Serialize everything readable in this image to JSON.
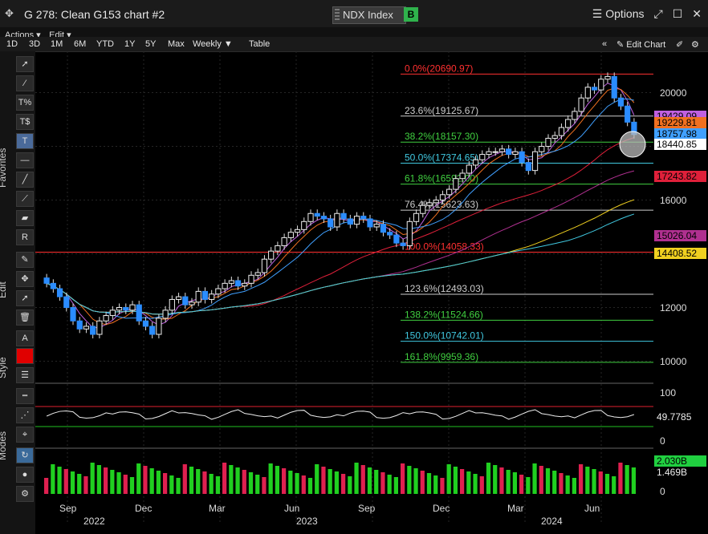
{
  "window": {
    "title": "G 278: Clean G153 chart #2",
    "ticker": "NDX Index",
    "b_label": "B",
    "options_label": "Options"
  },
  "menu": {
    "actions": "Actions ▾",
    "edit": "Edit ▾"
  },
  "toolbar": {
    "ranges": [
      "1D",
      "3D",
      "1M",
      "6M",
      "YTD",
      "1Y",
      "5Y",
      "Max"
    ],
    "period": "Weekly ▼",
    "table": "Table",
    "edit_chart": "Edit Chart"
  },
  "sidebar": {
    "favorites": "Favorites",
    "edit": "Edit",
    "style": "Style",
    "modes": "Modes"
  },
  "price_axis": [
    "20000",
    "18000",
    "16000",
    "14000",
    "12000",
    "10000"
  ],
  "price_tags": [
    {
      "text": "19229.81",
      "color": "#f07020"
    },
    {
      "text": "18440.85",
      "color": "#ffffff"
    },
    {
      "text": "17243.82",
      "color": "#e0203a"
    },
    {
      "text": "15026.04",
      "color": "#b03090"
    },
    {
      "text": "14408.52",
      "color": "#f0d020"
    },
    {
      "text": "19429.09",
      "color": "#c060e0"
    },
    {
      "text": "18757.98",
      "color": "#40a0ff"
    }
  ],
  "fib_levels": [
    {
      "label": "0.0%(20690.97)",
      "color": "#ff3030"
    },
    {
      "label": "23.6%(19125.67)",
      "color": "#cccccc"
    },
    {
      "label": "38.2%(18157.30)",
      "color": "#40d040"
    },
    {
      "label": "50.0%(17374.65)",
      "color": "#40c8e0"
    },
    {
      "label": "61.8%(16592.00)",
      "color": "#40d040"
    },
    {
      "label": "76.4%(15623.63)",
      "color": "#cccccc"
    },
    {
      "label": "100.0%(14058.33)",
      "color": "#ff3030"
    },
    {
      "label": "123.6%(12493.03)",
      "color": "#cccccc"
    },
    {
      "label": "138.2%(11524.66)",
      "color": "#40d040"
    },
    {
      "label": "150.0%(10742.01)",
      "color": "#40c8e0"
    },
    {
      "label": "161.8%(9959.36)",
      "color": "#40d040"
    }
  ],
  "rsi": {
    "axis": [
      "100",
      "0"
    ],
    "value": "49.7785"
  },
  "volume": {
    "axis": [
      "0"
    ],
    "values": [
      "2.030B",
      "1.469B"
    ]
  },
  "x_axis": {
    "months": [
      "Sep",
      "Dec",
      "Mar",
      "Jun",
      "Sep",
      "Dec",
      "Mar",
      "Jun"
    ],
    "years": [
      "2022",
      "2023",
      "2024"
    ]
  },
  "chart_data": {
    "type": "candlestick",
    "title": "",
    "ylim": [
      9500,
      21000
    ],
    "close_approx": [
      12900,
      12700,
      12400,
      12000,
      11500,
      11200,
      11300,
      11000,
      11500,
      11700,
      11900,
      12000,
      11900,
      12100,
      11500,
      11300,
      11000,
      11600,
      11900,
      12300,
      12400,
      12100,
      12200,
      12600,
      12300,
      12500,
      12700,
      12900,
      13000,
      12800,
      12900,
      13200,
      13300,
      13800,
      14100,
      14300,
      14600,
      14800,
      14900,
      15200,
      15500,
      15400,
      15300,
      15000,
      15500,
      15300,
      15100,
      15400,
      15300,
      15000,
      15100,
      14800,
      14700,
      14400,
      14300,
      15200,
      15500,
      15800,
      15900,
      16000,
      16200,
      16400,
      16800,
      17000,
      17300,
      17500,
      17700,
      17800,
      17800,
      17900,
      17700,
      17800,
      17400,
      17100,
      17800,
      18000,
      18300,
      18400,
      18700,
      19000,
      19300,
      19800,
      20200,
      20100,
      20500,
      20600,
      19800,
      19500,
      18900,
      18440
    ]
  }
}
